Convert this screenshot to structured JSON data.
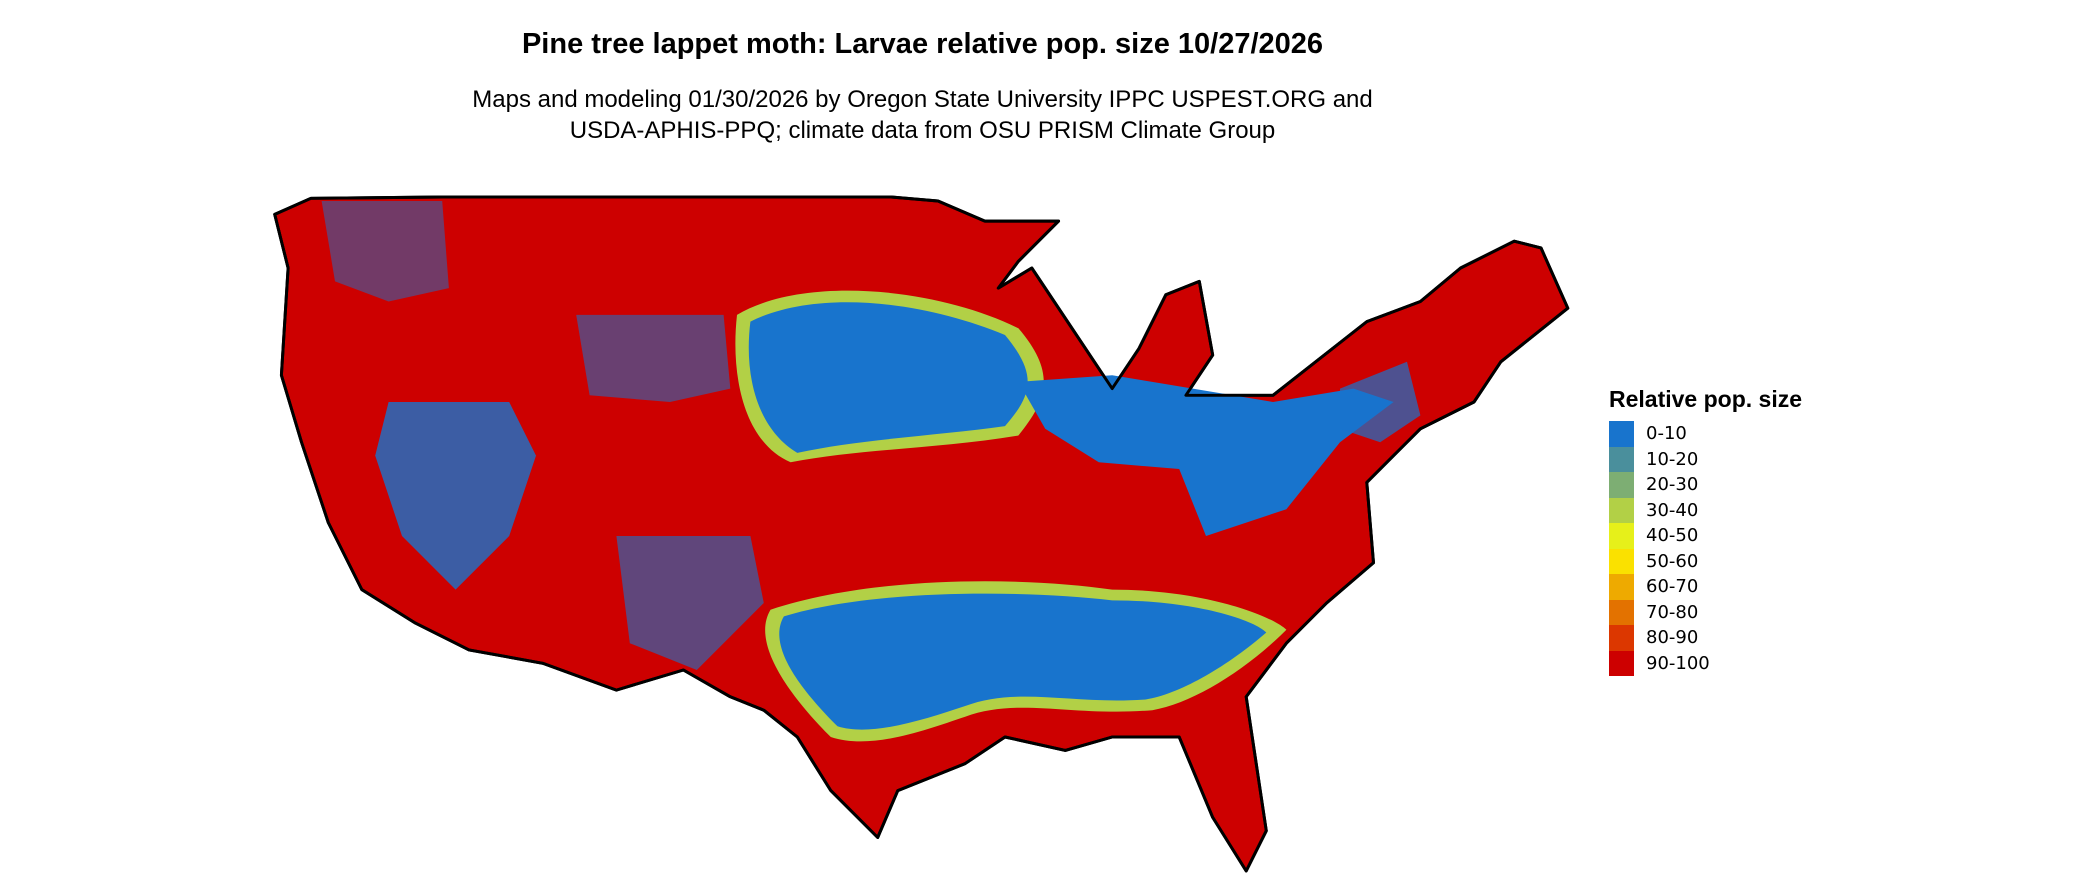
{
  "title": "Pine tree lappet moth: Larvae relative pop. size 10/27/2026",
  "subtitle_lines": [
    "Maps and modeling 01/30/2026 by Oregon State University IPPC USPEST.ORG and",
    "USDA-APHIS-PPQ; climate data from OSU PRISM Climate Group"
  ],
  "legend": {
    "title": "Relative pop. size",
    "items": [
      {
        "label": "0-10",
        "color": "#1874cd"
      },
      {
        "label": "10-20",
        "color": "#4a8f9c"
      },
      {
        "label": "20-30",
        "color": "#7dae73"
      },
      {
        "label": "30-40",
        "color": "#b2d046"
      },
      {
        "label": "40-50",
        "color": "#e6f01a"
      },
      {
        "label": "50-60",
        "color": "#fae100"
      },
      {
        "label": "60-70",
        "color": "#eeaa00"
      },
      {
        "label": "70-80",
        "color": "#e37200"
      },
      {
        "label": "80-90",
        "color": "#dc3700"
      },
      {
        "label": "90-100",
        "color": "#cd0000"
      }
    ]
  }
}
